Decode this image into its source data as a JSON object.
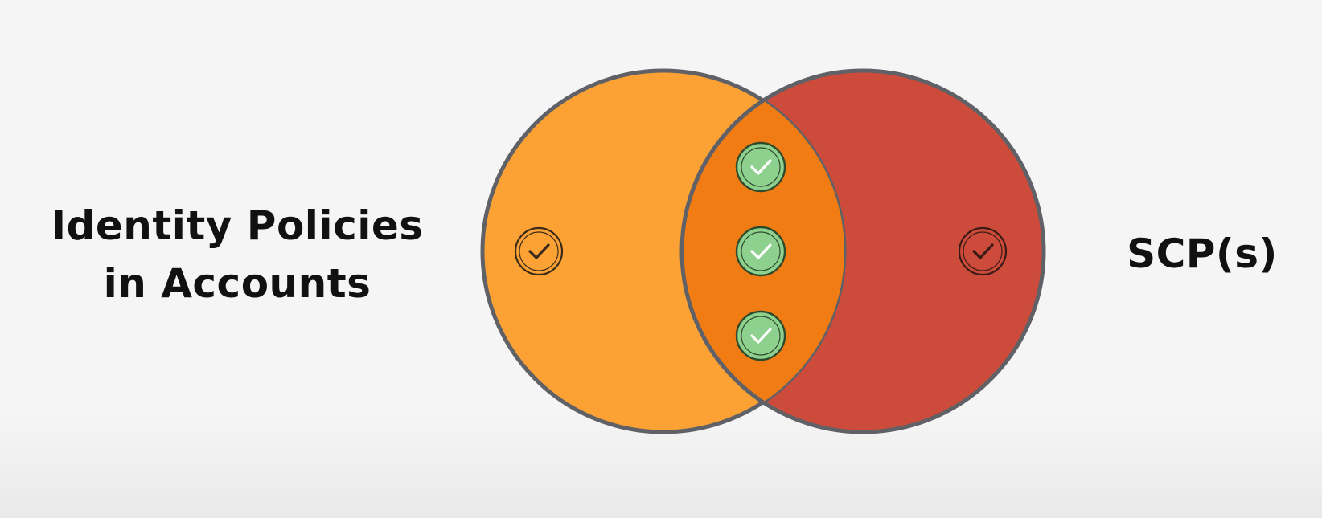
{
  "left_set": {
    "label_line1": "Identity Policies",
    "label_line2": "in Accounts",
    "color": "#fca234"
  },
  "right_set": {
    "label": "SCP(s)",
    "color": "#cd4b3a"
  },
  "overlap": {
    "color": "#f07c13"
  },
  "check_color": "#8ed08e"
}
